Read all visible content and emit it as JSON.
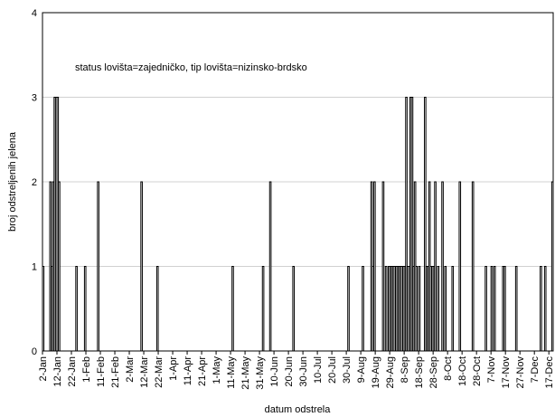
{
  "chart_data": {
    "type": "bar",
    "annotation": "status lovišta=zajedničko, tip lovišta=nizinsko-brdsko",
    "x_label": "datum odstrela",
    "y_label": "broj odstreljenih jelena",
    "x": [
      2,
      7,
      8,
      9,
      10,
      11,
      12,
      13,
      25,
      31,
      40,
      70,
      81,
      133,
      154,
      159,
      175,
      213,
      223,
      229,
      230,
      231,
      237,
      239,
      241,
      242,
      243,
      244,
      245,
      246,
      247,
      248,
      249,
      250,
      251,
      252,
      253,
      254,
      255,
      256,
      257,
      258,
      259,
      260,
      262,
      266,
      267,
      268,
      269,
      270,
      271,
      272,
      273,
      275,
      278,
      280,
      285,
      290,
      299,
      308,
      312,
      314,
      320,
      321,
      329,
      346,
      349,
      354
    ],
    "values": [
      1,
      2,
      1,
      2,
      3,
      3,
      3,
      2,
      1,
      1,
      2,
      2,
      1,
      1,
      1,
      2,
      1,
      1,
      1,
      2,
      1,
      2,
      2,
      1,
      1,
      1,
      1,
      1,
      1,
      1,
      1,
      1,
      1,
      1,
      1,
      1,
      3,
      1,
      1,
      3,
      3,
      1,
      2,
      1,
      1,
      3,
      1,
      1,
      2,
      1,
      1,
      1,
      2,
      1,
      2,
      1,
      1,
      2,
      2,
      1,
      1,
      1,
      1,
      1,
      1,
      1,
      1,
      2
    ],
    "color": "#ffffff",
    "xlim": [
      2,
      355
    ],
    "xticks": [
      {
        "value": 2,
        "label": "2-Jan"
      },
      {
        "value": 12,
        "label": "12-Jan"
      },
      {
        "value": 22,
        "label": "22-Jan"
      },
      {
        "value": 32,
        "label": "1-Feb"
      },
      {
        "value": 42,
        "label": "11-Feb"
      },
      {
        "value": 52,
        "label": "21-Feb"
      },
      {
        "value": 62,
        "label": "2-Mar"
      },
      {
        "value": 72,
        "label": "12-Mar"
      },
      {
        "value": 82,
        "label": "22-Mar"
      },
      {
        "value": 92,
        "label": "1-Apr"
      },
      {
        "value": 102,
        "label": "11-Apr"
      },
      {
        "value": 112,
        "label": "21-Apr"
      },
      {
        "value": 122,
        "label": "1-May"
      },
      {
        "value": 132,
        "label": "11-May"
      },
      {
        "value": 142,
        "label": "21-May"
      },
      {
        "value": 152,
        "label": "31-May"
      },
      {
        "value": 162,
        "label": "10-Jun"
      },
      {
        "value": 172,
        "label": "20-Jun"
      },
      {
        "value": 182,
        "label": "30-Jun"
      },
      {
        "value": 192,
        "label": "10-Jul"
      },
      {
        "value": 202,
        "label": "20-Jul"
      },
      {
        "value": 212,
        "label": "30-Jul"
      },
      {
        "value": 222,
        "label": "9-Aug"
      },
      {
        "value": 232,
        "label": "19-Aug"
      },
      {
        "value": 242,
        "label": "29-Aug"
      },
      {
        "value": 252,
        "label": "8-Sep"
      },
      {
        "value": 262,
        "label": "18-Sep"
      },
      {
        "value": 272,
        "label": "28-Sep"
      },
      {
        "value": 282,
        "label": "8-Oct"
      },
      {
        "value": 292,
        "label": "18-Oct"
      },
      {
        "value": 302,
        "label": "28-Oct"
      },
      {
        "value": 312,
        "label": "7-Nov"
      },
      {
        "value": 322,
        "label": "17-Nov"
      },
      {
        "value": 332,
        "label": "27-Nov"
      },
      {
        "value": 342,
        "label": "7-Dec"
      },
      {
        "value": 352,
        "label": "17-Dec"
      }
    ],
    "ylim": [
      0,
      4
    ],
    "yticks": [
      0,
      1,
      2,
      3,
      4
    ],
    "grid": true
  }
}
